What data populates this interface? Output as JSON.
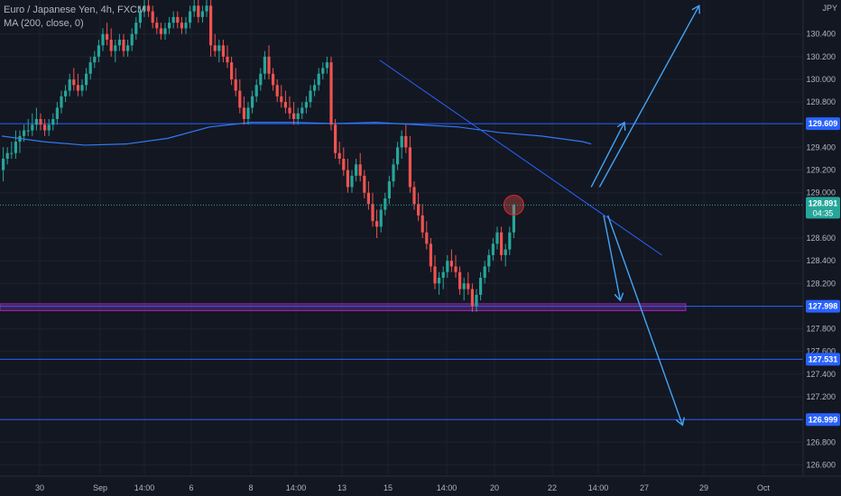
{
  "header": {
    "title": "Euro / Japanese Yen, 4h, FXCM",
    "indicator": "MA (200, close, 0)"
  },
  "colors": {
    "background": "#131722",
    "grid": "#1e222d",
    "up": "#26a69a",
    "down": "#ef5350",
    "line": "#2962ff",
    "ma": "#3179f5",
    "arrow": "#42a5f5",
    "purple": "#9c27b0",
    "text": "#b2b5be",
    "price_badge": "#26a69a"
  },
  "chart_data": {
    "type": "candlestick",
    "currency_label": "JPY",
    "price_axis_ticks": [
      "130.400",
      "130.200",
      "130.000",
      "129.800",
      "129.400",
      "129.200",
      "129.000",
      "128.600",
      "128.400",
      "128.200",
      "127.800",
      "127.600",
      "127.400",
      "127.200",
      "126.800",
      "126.600"
    ],
    "time_axis_ticks": [
      "30",
      "Sep",
      "14:00",
      "6",
      "8",
      "14:00",
      "13",
      "15",
      "14:00",
      "20",
      "22",
      "14:00",
      "27",
      "29",
      "Oct"
    ],
    "ylim": [
      126.5,
      130.7
    ],
    "horizontal_levels": [
      {
        "price": 129.609,
        "label": "129.609",
        "color": "#2962ff"
      },
      {
        "price": 127.998,
        "label": "127.998",
        "color": "#2962ff"
      },
      {
        "price": 127.531,
        "label": "127.531",
        "color": "#2962ff"
      },
      {
        "price": 126.999,
        "label": "126.999",
        "color": "#2962ff"
      }
    ],
    "support_zone": {
      "from": 127.96,
      "to": 128.02
    },
    "current_price": {
      "price": 128.891,
      "label": "128.891",
      "countdown": "04:35"
    },
    "trendline": {
      "from": {
        "i": 91,
        "p": 130.17
      },
      "to": {
        "i": 159,
        "p": 128.45
      }
    },
    "ma_200": [
      [
        0,
        129.5
      ],
      [
        10,
        129.45
      ],
      [
        20,
        129.42
      ],
      [
        30,
        129.43
      ],
      [
        40,
        129.48
      ],
      [
        50,
        129.58
      ],
      [
        60,
        129.62
      ],
      [
        70,
        129.62
      ],
      [
        80,
        129.61
      ],
      [
        90,
        129.62
      ],
      [
        100,
        129.6
      ],
      [
        110,
        129.58
      ],
      [
        120,
        129.53
      ],
      [
        130,
        129.5
      ],
      [
        140,
        129.45
      ],
      [
        142,
        129.43
      ]
    ],
    "projections": [
      {
        "from": {
          "i": 142,
          "p": 129.05
        },
        "to": {
          "i": 150,
          "p": 129.62
        }
      },
      {
        "from": {
          "i": 144,
          "p": 129.05
        },
        "to": {
          "i": 168,
          "p": 130.65
        }
      },
      {
        "from": {
          "i": 145,
          "p": 128.8
        },
        "to": {
          "i": 149,
          "p": 128.05
        }
      },
      {
        "from": {
          "i": 146,
          "p": 128.8
        },
        "to": {
          "i": 164,
          "p": 126.95
        }
      }
    ],
    "candles": [
      [
        129.2,
        129.4,
        129.1,
        129.3
      ],
      [
        129.3,
        129.4,
        129.25,
        129.35
      ],
      [
        129.35,
        129.45,
        129.3,
        129.35
      ],
      [
        129.35,
        129.55,
        129.3,
        129.45
      ],
      [
        129.45,
        129.55,
        129.35,
        129.5
      ],
      [
        129.5,
        129.6,
        129.45,
        129.55
      ],
      [
        129.55,
        129.65,
        129.5,
        129.55
      ],
      [
        129.55,
        129.7,
        129.5,
        129.6
      ],
      [
        129.6,
        129.75,
        129.55,
        129.65
      ],
      [
        129.65,
        129.7,
        129.55,
        129.6
      ],
      [
        129.6,
        129.65,
        129.5,
        129.55
      ],
      [
        129.55,
        129.65,
        129.5,
        129.6
      ],
      [
        129.6,
        129.7,
        129.55,
        129.65
      ],
      [
        129.65,
        129.8,
        129.6,
        129.75
      ],
      [
        129.75,
        129.9,
        129.7,
        129.85
      ],
      [
        129.85,
        129.95,
        129.8,
        129.9
      ],
      [
        129.9,
        130.05,
        129.85,
        130.0
      ],
      [
        130.0,
        130.1,
        129.9,
        129.95
      ],
      [
        129.95,
        130.05,
        129.85,
        129.9
      ],
      [
        129.9,
        130.0,
        129.85,
        129.95
      ],
      [
        129.95,
        130.1,
        129.9,
        130.05
      ],
      [
        130.05,
        130.2,
        130.0,
        130.15
      ],
      [
        130.15,
        130.25,
        130.1,
        130.2
      ],
      [
        130.2,
        130.35,
        130.15,
        130.3
      ],
      [
        130.3,
        130.45,
        130.25,
        130.4
      ],
      [
        130.4,
        130.5,
        130.3,
        130.35
      ],
      [
        130.35,
        130.45,
        130.2,
        130.25
      ],
      [
        130.25,
        130.35,
        130.15,
        130.3
      ],
      [
        130.3,
        130.4,
        130.25,
        130.35
      ],
      [
        130.35,
        130.4,
        130.2,
        130.25
      ],
      [
        130.25,
        130.35,
        130.2,
        130.3
      ],
      [
        130.3,
        130.45,
        130.25,
        130.4
      ],
      [
        130.4,
        130.55,
        130.35,
        130.5
      ],
      [
        130.5,
        130.65,
        130.45,
        130.6
      ],
      [
        130.6,
        130.7,
        130.55,
        130.65
      ],
      [
        130.65,
        130.7,
        130.55,
        130.6
      ],
      [
        130.6,
        130.65,
        130.45,
        130.5
      ],
      [
        130.5,
        130.55,
        130.4,
        130.45
      ],
      [
        130.45,
        130.5,
        130.35,
        130.4
      ],
      [
        130.4,
        130.5,
        130.35,
        130.45
      ],
      [
        130.45,
        130.55,
        130.4,
        130.5
      ],
      [
        130.5,
        130.6,
        130.45,
        130.55
      ],
      [
        130.55,
        130.6,
        130.45,
        130.5
      ],
      [
        130.5,
        130.55,
        130.4,
        130.45
      ],
      [
        130.45,
        130.55,
        130.4,
        130.5
      ],
      [
        130.5,
        130.65,
        130.45,
        130.6
      ],
      [
        130.6,
        130.7,
        130.55,
        130.65
      ],
      [
        130.65,
        130.7,
        130.5,
        130.55
      ],
      [
        130.55,
        130.65,
        130.5,
        130.6
      ],
      [
        130.6,
        130.7,
        130.55,
        130.65
      ],
      [
        130.65,
        130.7,
        130.2,
        130.3
      ],
      [
        130.3,
        130.4,
        130.2,
        130.25
      ],
      [
        130.25,
        130.35,
        130.15,
        130.3
      ],
      [
        130.3,
        130.35,
        130.15,
        130.2
      ],
      [
        130.2,
        130.3,
        130.1,
        130.15
      ],
      [
        130.15,
        130.2,
        129.95,
        130.0
      ],
      [
        130.0,
        130.1,
        129.85,
        129.9
      ],
      [
        129.9,
        130.0,
        129.7,
        129.75
      ],
      [
        129.75,
        129.85,
        129.6,
        129.65
      ],
      [
        129.65,
        129.8,
        129.6,
        129.75
      ],
      [
        129.75,
        129.9,
        129.7,
        129.85
      ],
      [
        129.85,
        130.0,
        129.8,
        129.95
      ],
      [
        129.95,
        130.1,
        129.9,
        130.05
      ],
      [
        130.05,
        130.25,
        130.0,
        130.2
      ],
      [
        130.2,
        130.3,
        130.0,
        130.05
      ],
      [
        130.05,
        130.1,
        129.9,
        129.95
      ],
      [
        129.95,
        130.0,
        129.8,
        129.85
      ],
      [
        129.85,
        129.95,
        129.75,
        129.8
      ],
      [
        129.8,
        129.9,
        129.7,
        129.75
      ],
      [
        129.75,
        129.85,
        129.65,
        129.7
      ],
      [
        129.7,
        129.8,
        129.6,
        129.65
      ],
      [
        129.65,
        129.75,
        129.6,
        129.7
      ],
      [
        129.7,
        129.8,
        129.65,
        129.75
      ],
      [
        129.75,
        129.85,
        129.7,
        129.8
      ],
      [
        129.8,
        129.95,
        129.75,
        129.9
      ],
      [
        129.9,
        130.0,
        129.85,
        129.95
      ],
      [
        129.95,
        130.1,
        129.9,
        130.05
      ],
      [
        130.05,
        130.15,
        130.0,
        130.1
      ],
      [
        130.1,
        130.2,
        130.05,
        130.15
      ],
      [
        130.15,
        130.2,
        129.55,
        129.6
      ],
      [
        129.6,
        129.65,
        129.3,
        129.35
      ],
      [
        129.35,
        129.45,
        129.25,
        129.3
      ],
      [
        129.3,
        129.4,
        129.15,
        129.2
      ],
      [
        129.2,
        129.3,
        129.0,
        129.05
      ],
      [
        129.05,
        129.2,
        129.0,
        129.15
      ],
      [
        129.15,
        129.3,
        129.1,
        129.25
      ],
      [
        129.25,
        129.35,
        129.1,
        129.15
      ],
      [
        129.15,
        129.2,
        128.95,
        129.0
      ],
      [
        129.0,
        129.1,
        128.85,
        128.9
      ],
      [
        128.9,
        129.0,
        128.7,
        128.75
      ],
      [
        128.75,
        128.85,
        128.6,
        128.7
      ],
      [
        128.7,
        128.9,
        128.65,
        128.85
      ],
      [
        128.85,
        129.0,
        128.8,
        128.95
      ],
      [
        128.95,
        129.15,
        128.9,
        129.1
      ],
      [
        129.1,
        129.3,
        129.05,
        129.25
      ],
      [
        129.25,
        129.45,
        129.2,
        129.4
      ],
      [
        129.4,
        129.55,
        129.3,
        129.5
      ],
      [
        129.5,
        129.6,
        129.35,
        129.4
      ],
      [
        129.4,
        129.5,
        129.0,
        129.05
      ],
      [
        129.05,
        129.1,
        128.85,
        128.9
      ],
      [
        128.9,
        129.0,
        128.75,
        128.8
      ],
      [
        128.8,
        128.9,
        128.6,
        128.65
      ],
      [
        128.65,
        128.75,
        128.5,
        128.55
      ],
      [
        128.55,
        128.6,
        128.3,
        128.35
      ],
      [
        128.35,
        128.45,
        128.15,
        128.2
      ],
      [
        128.2,
        128.3,
        128.1,
        128.25
      ],
      [
        128.25,
        128.35,
        128.15,
        128.3
      ],
      [
        128.3,
        128.45,
        128.25,
        128.4
      ],
      [
        128.4,
        128.5,
        128.3,
        128.35
      ],
      [
        128.35,
        128.45,
        128.25,
        128.3
      ],
      [
        128.3,
        128.35,
        128.1,
        128.15
      ],
      [
        128.15,
        128.25,
        128.05,
        128.2
      ],
      [
        128.2,
        128.3,
        128.1,
        128.15
      ],
      [
        128.15,
        128.2,
        127.95,
        128.0
      ],
      [
        128.0,
        128.15,
        127.95,
        128.1
      ],
      [
        128.1,
        128.3,
        128.05,
        128.25
      ],
      [
        128.25,
        128.4,
        128.2,
        128.35
      ],
      [
        128.35,
        128.5,
        128.3,
        128.45
      ],
      [
        128.45,
        128.6,
        128.4,
        128.55
      ],
      [
        128.55,
        128.7,
        128.5,
        128.65
      ],
      [
        128.65,
        128.7,
        128.4,
        128.45
      ],
      [
        128.45,
        128.55,
        128.35,
        128.5
      ],
      [
        128.5,
        128.7,
        128.45,
        128.65
      ],
      [
        128.65,
        128.9,
        128.6,
        128.89
      ]
    ]
  }
}
